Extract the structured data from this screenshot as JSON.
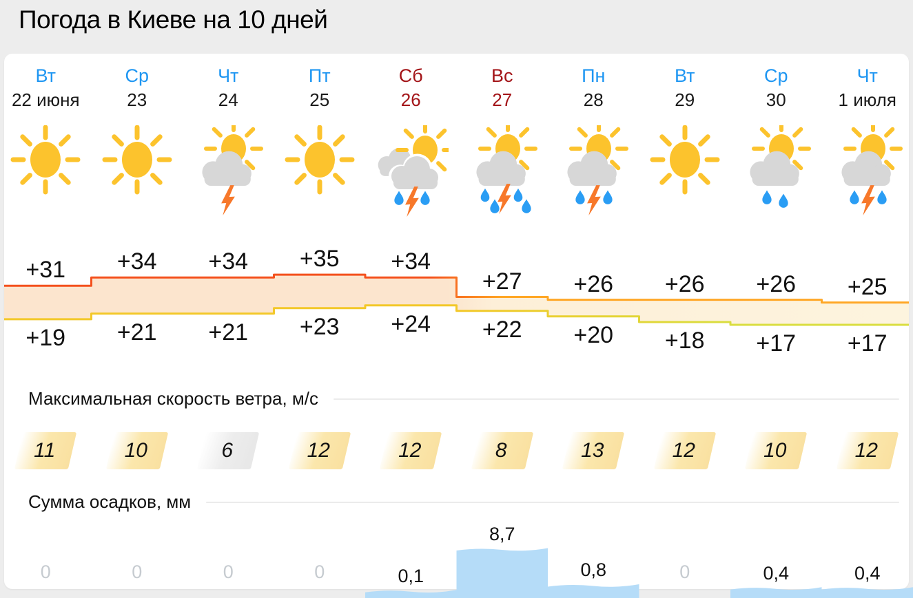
{
  "title": "Погода в Киеве на 10 дней",
  "sections": {
    "wind_title": "Максимальная скорость ветра, м/с",
    "precip_title": "Сумма осадков, мм"
  },
  "colors": {
    "weekday_blue": "#1e96f2",
    "weekend_red": "#a31418",
    "temp_line_hot": "#f4511e",
    "temp_line_warm": "#ffa726",
    "temp_line_min_yellow": "#f3c829",
    "temp_line_min_green": "#d9dd3f",
    "temp_fill_left": "#fce5ce",
    "temp_fill_right": "#fdf4de",
    "wind_badge_yellow": "#fbe7ac",
    "wind_badge_gray": "#ededed",
    "precip_bar_blue": "#b5dcf8",
    "sun": "#fcc32d",
    "cloud": "#d7d7d7",
    "lightning": "#f7782a",
    "raindrop": "#2a9df4"
  },
  "days": [
    {
      "name": "Вт",
      "date": "22 июня",
      "weekend": false,
      "icon": "sunny",
      "temp_max_label": "+31",
      "temp_min_label": "+19",
      "wind_label": "11",
      "wind_calm": false,
      "precip_label": "0",
      "precip_zero": true
    },
    {
      "name": "Ср",
      "date": "23",
      "weekend": false,
      "icon": "sunny",
      "temp_max_label": "+34",
      "temp_min_label": "+21",
      "wind_label": "10",
      "wind_calm": false,
      "precip_label": "0",
      "precip_zero": true
    },
    {
      "name": "Чт",
      "date": "24",
      "weekend": false,
      "icon": "cloud-sun-thunder",
      "temp_max_label": "+34",
      "temp_min_label": "+21",
      "wind_label": "6",
      "wind_calm": true,
      "precip_label": "0",
      "precip_zero": true
    },
    {
      "name": "Пт",
      "date": "25",
      "weekend": false,
      "icon": "sunny",
      "temp_max_label": "+35",
      "temp_min_label": "+23",
      "wind_label": "12",
      "wind_calm": false,
      "precip_label": "0",
      "precip_zero": true
    },
    {
      "name": "Сб",
      "date": "26",
      "weekend": true,
      "icon": "heavy-storm",
      "temp_max_label": "+34",
      "temp_min_label": "+24",
      "wind_label": "12",
      "wind_calm": false,
      "precip_label": "0,1",
      "precip_zero": false
    },
    {
      "name": "Вс",
      "date": "27",
      "weekend": true,
      "icon": "storm-heavy-rain",
      "temp_max_label": "+27",
      "temp_min_label": "+22",
      "wind_label": "8",
      "wind_calm": false,
      "precip_label": "8,7",
      "precip_zero": false
    },
    {
      "name": "Пн",
      "date": "28",
      "weekend": false,
      "icon": "storm-rain",
      "temp_max_label": "+26",
      "temp_min_label": "+20",
      "wind_label": "13",
      "wind_calm": false,
      "precip_label": "0,8",
      "precip_zero": false
    },
    {
      "name": "Вт",
      "date": "29",
      "weekend": false,
      "icon": "sunny",
      "temp_max_label": "+26",
      "temp_min_label": "+18",
      "wind_label": "12",
      "wind_calm": false,
      "precip_label": "0",
      "precip_zero": true
    },
    {
      "name": "Ср",
      "date": "30",
      "weekend": false,
      "icon": "rain",
      "temp_max_label": "+26",
      "temp_min_label": "+17",
      "wind_label": "10",
      "wind_calm": false,
      "precip_label": "0,4",
      "precip_zero": false
    },
    {
      "name": "Чт",
      "date": "1 июля",
      "weekend": false,
      "icon": "storm-rain",
      "temp_max_label": "+25",
      "temp_min_label": "+17",
      "wind_label": "12",
      "wind_calm": false,
      "precip_label": "0,4",
      "precip_zero": false
    }
  ],
  "chart_data": [
    {
      "type": "area",
      "name": "temperature-band",
      "title": "Погода в Киеве на 10 дней",
      "categories": [
        "Вт 22 июня",
        "Ср 23",
        "Чт 24",
        "Пт 25",
        "Сб 26",
        "Вс 27",
        "Пн 28",
        "Вт 29",
        "Ср 30",
        "Чт 1 июля"
      ],
      "series": [
        {
          "name": "max",
          "values": [
            31,
            34,
            34,
            35,
            34,
            27,
            26,
            26,
            26,
            25
          ]
        },
        {
          "name": "min",
          "values": [
            19,
            21,
            21,
            23,
            24,
            22,
            20,
            18,
            17,
            17
          ]
        }
      ],
      "unit": "°C",
      "ylim": [
        17,
        35
      ],
      "grid": false,
      "legend": "none"
    },
    {
      "type": "bar",
      "name": "wind-speed",
      "title": "Максимальная скорость ветра, м/с",
      "categories": [
        "22",
        "23",
        "24",
        "25",
        "26",
        "27",
        "28",
        "29",
        "30",
        "1"
      ],
      "values": [
        11,
        10,
        6,
        12,
        12,
        8,
        13,
        12,
        10,
        12
      ],
      "unit": "м/с"
    },
    {
      "type": "bar",
      "name": "precipitation",
      "title": "Сумма осадков, мм",
      "categories": [
        "22",
        "23",
        "24",
        "25",
        "26",
        "27",
        "28",
        "29",
        "30",
        "1"
      ],
      "values": [
        0,
        0,
        0,
        0,
        0.1,
        8.7,
        0.8,
        0,
        0.4,
        0.4
      ],
      "labels": [
        "0",
        "0",
        "0",
        "0",
        "0,1",
        "8,7",
        "0,8",
        "0",
        "0,4",
        "0,4"
      ],
      "unit": "мм"
    }
  ]
}
